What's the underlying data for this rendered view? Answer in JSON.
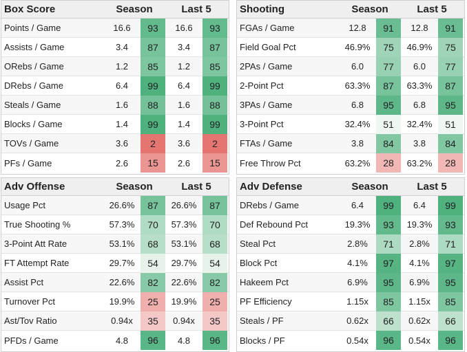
{
  "panels": [
    {
      "title": "Box Score",
      "col1": "Season",
      "col2": "Last 5",
      "rows": [
        {
          "label": "Points / Game",
          "s_val": "16.6",
          "s_pct": "93",
          "l_val": "16.6",
          "l_pct": "93"
        },
        {
          "label": "Assists / Game",
          "s_val": "3.4",
          "s_pct": "87",
          "l_val": "3.4",
          "l_pct": "87"
        },
        {
          "label": "ORebs / Game",
          "s_val": "1.2",
          "s_pct": "85",
          "l_val": "1.2",
          "l_pct": "85"
        },
        {
          "label": "DRebs / Game",
          "s_val": "6.4",
          "s_pct": "99",
          "l_val": "6.4",
          "l_pct": "99"
        },
        {
          "label": "Steals / Game",
          "s_val": "1.6",
          "s_pct": "88",
          "l_val": "1.6",
          "l_pct": "88"
        },
        {
          "label": "Blocks / Game",
          "s_val": "1.4",
          "s_pct": "99",
          "l_val": "1.4",
          "l_pct": "99"
        },
        {
          "label": "TOVs / Game",
          "s_val": "3.6",
          "s_pct": "2",
          "l_val": "3.6",
          "l_pct": "2"
        },
        {
          "label": "PFs / Game",
          "s_val": "2.6",
          "s_pct": "15",
          "l_val": "2.6",
          "l_pct": "15"
        }
      ]
    },
    {
      "title": "Shooting",
      "col1": "Season",
      "col2": "Last 5",
      "rows": [
        {
          "label": "FGAs / Game",
          "s_val": "12.8",
          "s_pct": "91",
          "l_val": "12.8",
          "l_pct": "91"
        },
        {
          "label": "Field Goal Pct",
          "s_val": "46.9%",
          "s_pct": "75",
          "l_val": "46.9%",
          "l_pct": "75"
        },
        {
          "label": "2PAs / Game",
          "s_val": "6.0",
          "s_pct": "77",
          "l_val": "6.0",
          "l_pct": "77"
        },
        {
          "label": "2-Point Pct",
          "s_val": "63.3%",
          "s_pct": "87",
          "l_val": "63.3%",
          "l_pct": "87"
        },
        {
          "label": "3PAs / Game",
          "s_val": "6.8",
          "s_pct": "95",
          "l_val": "6.8",
          "l_pct": "95"
        },
        {
          "label": "3-Point Pct",
          "s_val": "32.4%",
          "s_pct": "51",
          "l_val": "32.4%",
          "l_pct": "51"
        },
        {
          "label": "FTAs / Game",
          "s_val": "3.8",
          "s_pct": "84",
          "l_val": "3.8",
          "l_pct": "84"
        },
        {
          "label": "Free Throw Pct",
          "s_val": "63.2%",
          "s_pct": "28",
          "l_val": "63.2%",
          "l_pct": "28"
        }
      ]
    },
    {
      "title": "Adv Offense",
      "col1": "Season",
      "col2": "Last 5",
      "rows": [
        {
          "label": "Usage Pct",
          "s_val": "26.6%",
          "s_pct": "87",
          "l_val": "26.6%",
          "l_pct": "87"
        },
        {
          "label": "True Shooting %",
          "s_val": "57.3%",
          "s_pct": "70",
          "l_val": "57.3%",
          "l_pct": "70"
        },
        {
          "label": "3-Point Att Rate",
          "s_val": "53.1%",
          "s_pct": "68",
          "l_val": "53.1%",
          "l_pct": "68"
        },
        {
          "label": "FT Attempt Rate",
          "s_val": "29.7%",
          "s_pct": "54",
          "l_val": "29.7%",
          "l_pct": "54"
        },
        {
          "label": "Assist Pct",
          "s_val": "22.6%",
          "s_pct": "82",
          "l_val": "22.6%",
          "l_pct": "82"
        },
        {
          "label": "Turnover Pct",
          "s_val": "19.9%",
          "s_pct": "25",
          "l_val": "19.9%",
          "l_pct": "25"
        },
        {
          "label": "Ast/Tov Ratio",
          "s_val": "0.94x",
          "s_pct": "35",
          "l_val": "0.94x",
          "l_pct": "35"
        },
        {
          "label": "PFDs / Game",
          "s_val": "4.8",
          "s_pct": "96",
          "l_val": "4.8",
          "l_pct": "96"
        }
      ]
    },
    {
      "title": "Adv Defense",
      "col1": "Season",
      "col2": "Last 5",
      "rows": [
        {
          "label": "DRebs / Game",
          "s_val": "6.4",
          "s_pct": "99",
          "l_val": "6.4",
          "l_pct": "99"
        },
        {
          "label": "Def Rebound Pct",
          "s_val": "19.3%",
          "s_pct": "93",
          "l_val": "19.3%",
          "l_pct": "93"
        },
        {
          "label": "Steal Pct",
          "s_val": "2.8%",
          "s_pct": "71",
          "l_val": "2.8%",
          "l_pct": "71"
        },
        {
          "label": "Block Pct",
          "s_val": "4.1%",
          "s_pct": "97",
          "l_val": "4.1%",
          "l_pct": "97"
        },
        {
          "label": "Hakeem Pct",
          "s_val": "6.9%",
          "s_pct": "95",
          "l_val": "6.9%",
          "l_pct": "95"
        },
        {
          "label": "PF Efficiency",
          "s_val": "1.15x",
          "s_pct": "85",
          "l_val": "1.15x",
          "l_pct": "85"
        },
        {
          "label": "Steals / PF",
          "s_val": "0.62x",
          "s_pct": "66",
          "l_val": "0.62x",
          "l_pct": "66"
        },
        {
          "label": "Blocks / PF",
          "s_val": "0.54x",
          "s_pct": "96",
          "l_val": "0.54x",
          "l_pct": "96"
        }
      ]
    }
  ],
  "colors": {
    "high_green": "#5bb887",
    "mid_green": "#9ed6b5",
    "neutral": "#f4f8f5",
    "low_red": "#e8817e",
    "light_red": "#f4c4c1"
  }
}
